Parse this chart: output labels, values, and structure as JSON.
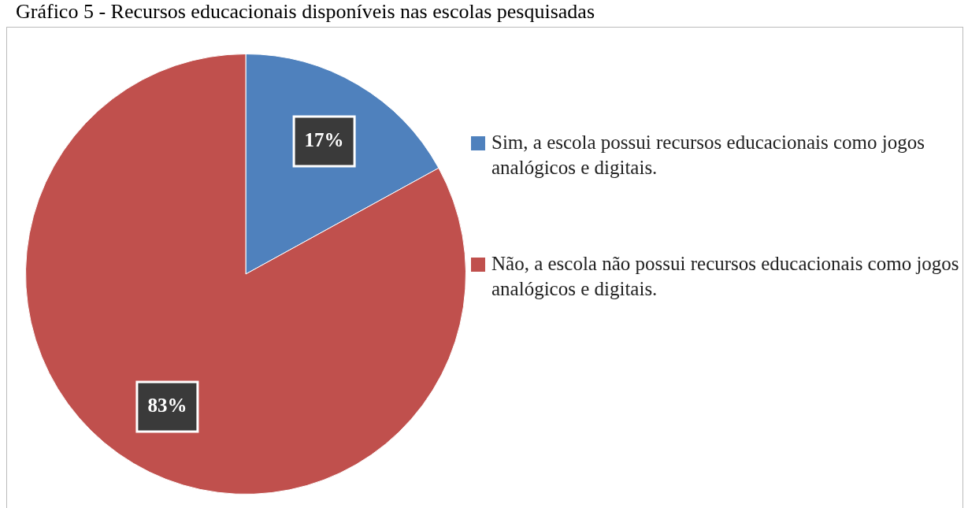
{
  "chart_data": {
    "type": "pie",
    "title": "Gráfico 5 - Recursos educacionais disponíveis nas escolas pesquisadas",
    "categories": [
      "Sim, a escola possui recursos educacionais como jogos analógicos e digitais.",
      "Não, a escola não possui recursos educacionais como jogos analógicos e digitais."
    ],
    "values": [
      17,
      83
    ],
    "value_labels": [
      "17%",
      "83%"
    ],
    "colors": [
      "#4f81bd",
      "#c0504d"
    ],
    "legend": "right"
  }
}
